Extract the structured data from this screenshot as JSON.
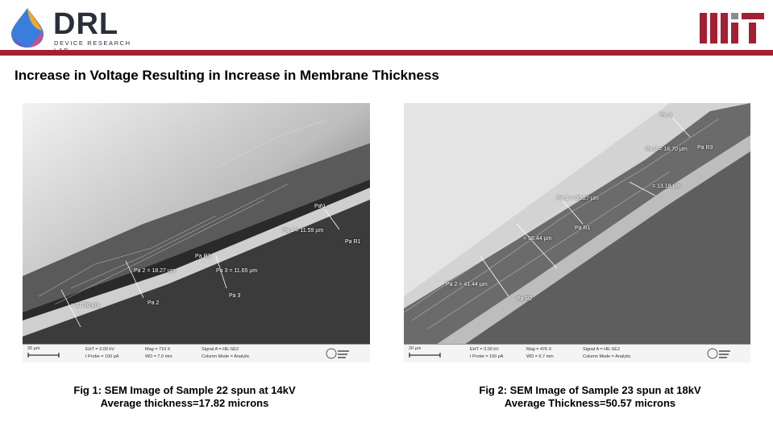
{
  "header": {
    "logo_text": "DRL",
    "logo_subtext": "DEVICE RESEARCH LAB",
    "title": "Increase in Voltage Resulting in Increase in Membrane Thickness"
  },
  "colors": {
    "accent_rule": "#a31f34",
    "mit_red": "#a31f34",
    "mit_gray": "#8a8b8c"
  },
  "images": [
    {
      "scale": "20 µm",
      "eht": "EHT = 3.00 kV",
      "iprobe": "I Probe = 100 pA",
      "mag": "Mag = 719 X",
      "wd": "WD = 7.0 mm",
      "signal": "Signal A = HE-SE2",
      "column": "Column Mode = Analytic",
      "annotations": [
        "Pa 1",
        "Pa 1 = 11.59 µm",
        "Pa R1",
        "Pa R3",
        "Pa 2 = 18.27 µm",
        "Pa 3 = 11.65 µm",
        "Pa 2",
        "Pa 3",
        "= 17.36 µm"
      ],
      "caption_line1": "Fig 1: SEM Image of Sample 22 spun at 14kV",
      "caption_line2": "Average thickness=17.82 microns"
    },
    {
      "scale": "20 µm",
      "eht": "EHT = 3.00 kV",
      "iprobe": "I Probe = 100 pA",
      "mag": "Mag = 476 X",
      "wd": "WD = 9.7 mm",
      "signal": "Signal A = HE-SE2",
      "column": "Column Mode = Analytic",
      "annotations": [
        "Pa 3",
        "Pa 3 = 18.70 µm",
        "Pa R3",
        "= 13.18 µm",
        "Pa 1 = 30.27 µm",
        "= 56.44 µm",
        "Pa R1",
        "Pa 2 = 41.44 µm",
        "Pa R2"
      ],
      "caption_line1": "Fig 2: SEM Image of Sample 23 spun at 18kV",
      "caption_line2": "Average Thickness=50.57 microns"
    }
  ]
}
